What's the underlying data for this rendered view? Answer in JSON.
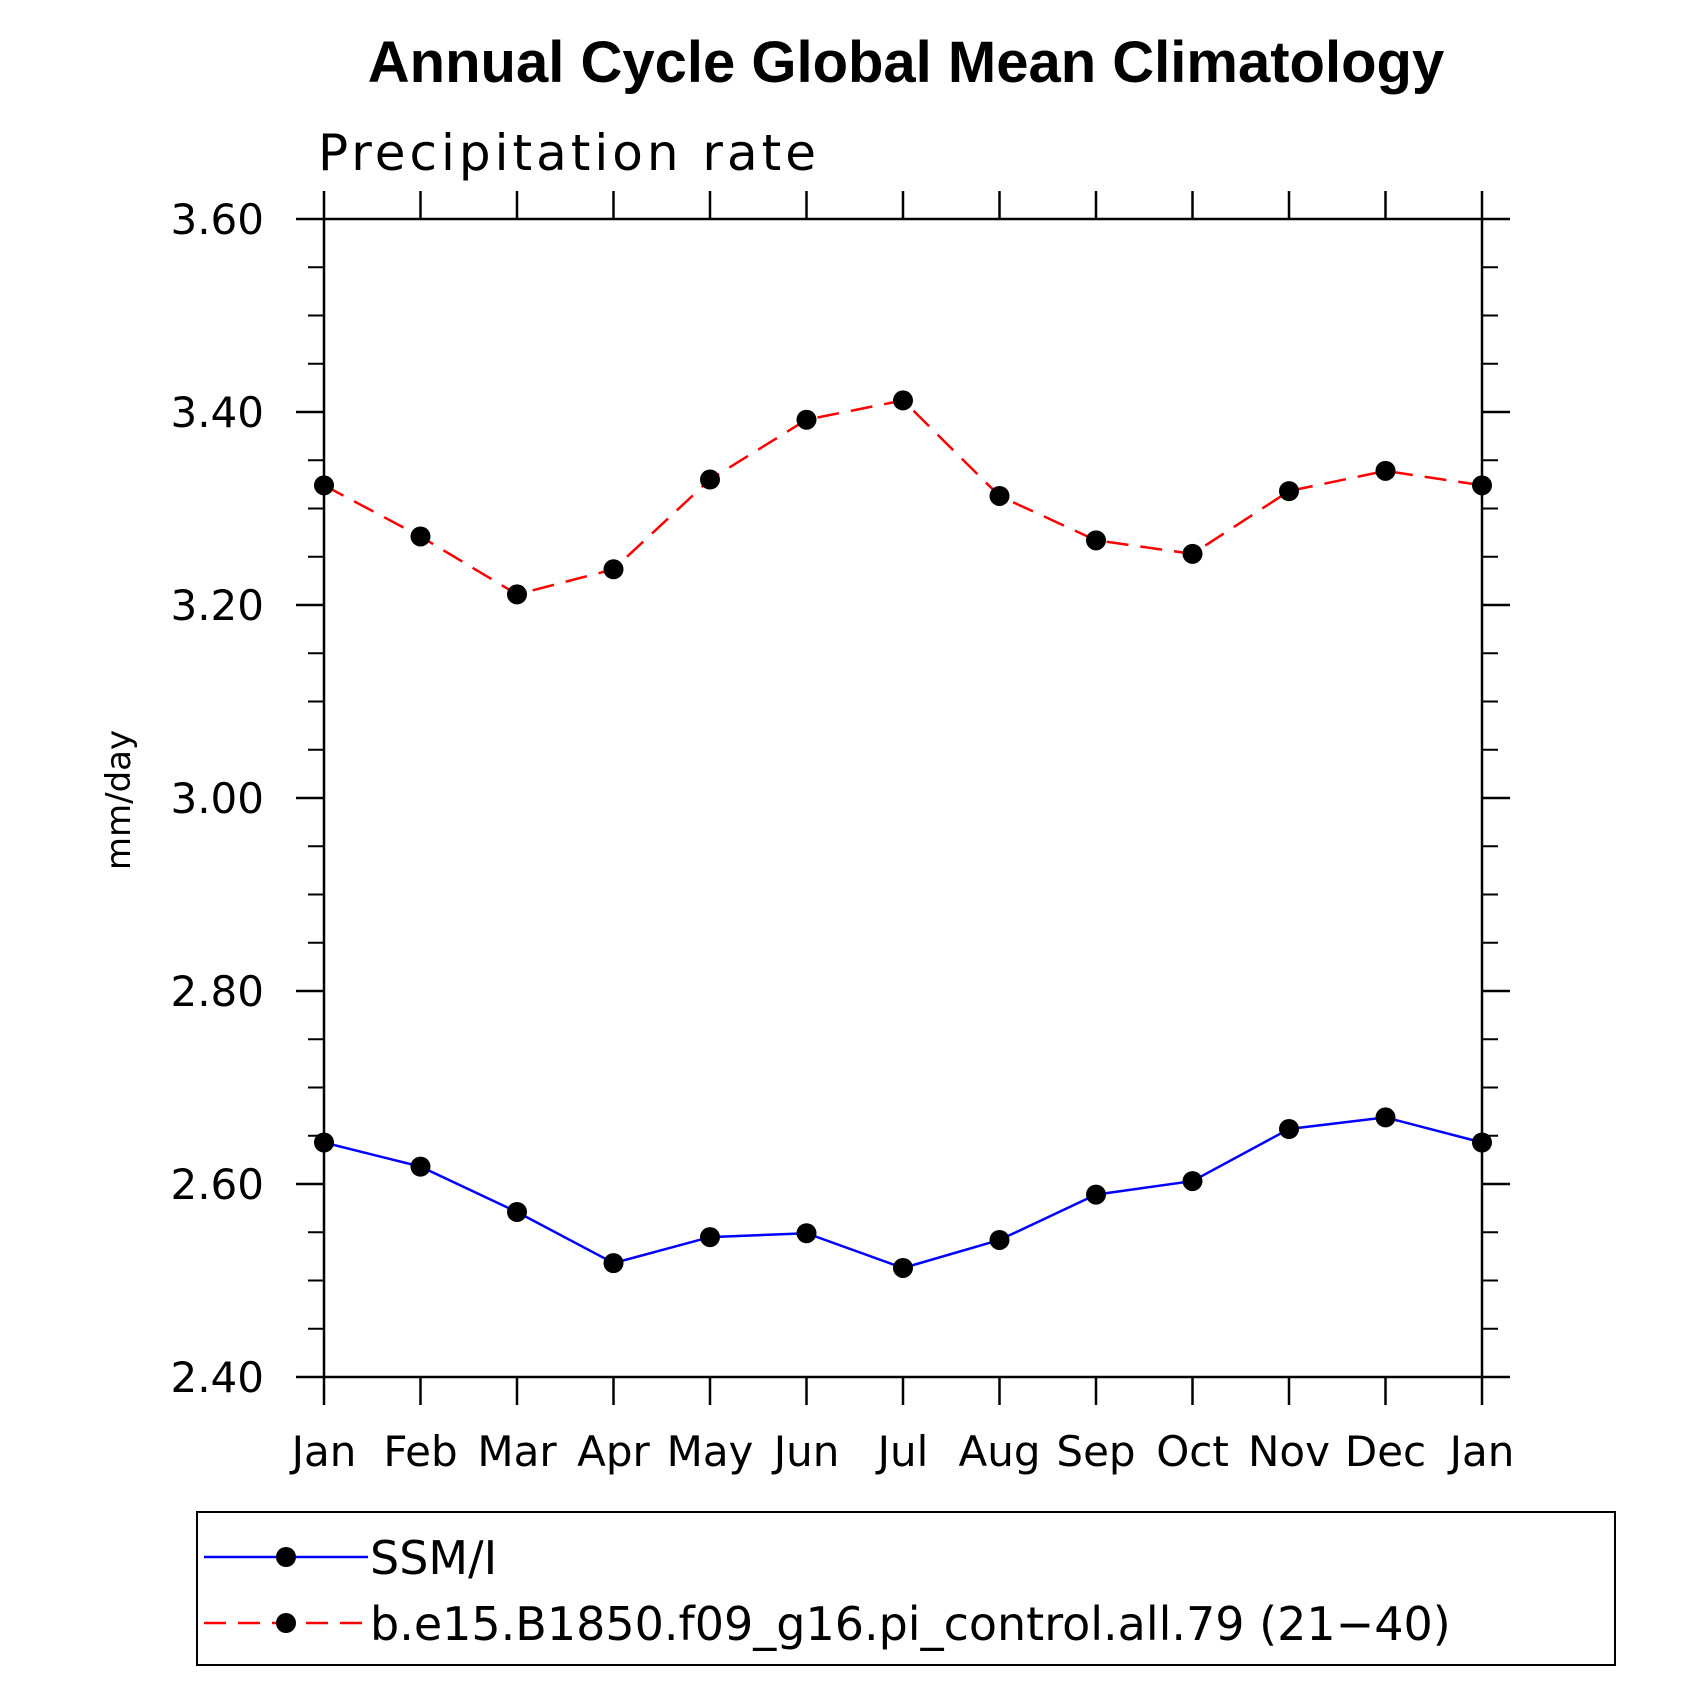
{
  "chart_data": {
    "type": "line",
    "title": "Annual Cycle Global Mean Climatology",
    "subtitle": "Precipitation rate",
    "ylabel": "mm/day",
    "xlabel": "",
    "categories": [
      "Jan",
      "Feb",
      "Mar",
      "Apr",
      "May",
      "Jun",
      "Jul",
      "Aug",
      "Sep",
      "Oct",
      "Nov",
      "Dec",
      "Jan"
    ],
    "ylim": [
      2.4,
      3.6
    ],
    "yticks": [
      "2.40",
      "2.60",
      "2.80",
      "3.00",
      "3.20",
      "3.40",
      "3.60"
    ],
    "grid": false,
    "legend_position": "bottom",
    "series": [
      {
        "name": "SSM/I",
        "color": "#0000ff",
        "dash": "solid",
        "values": [
          2.643,
          2.618,
          2.571,
          2.518,
          2.545,
          2.549,
          2.513,
          2.542,
          2.589,
          2.603,
          2.657,
          2.669,
          2.643
        ]
      },
      {
        "name": "b.e15.B1850.f09_g16.pi_control.all.79 (21−40)",
        "color": "#ff0000",
        "dash": "dashed",
        "values": [
          3.324,
          3.271,
          3.211,
          3.237,
          3.33,
          3.392,
          3.412,
          3.313,
          3.267,
          3.253,
          3.318,
          3.339,
          3.324
        ]
      }
    ]
  }
}
